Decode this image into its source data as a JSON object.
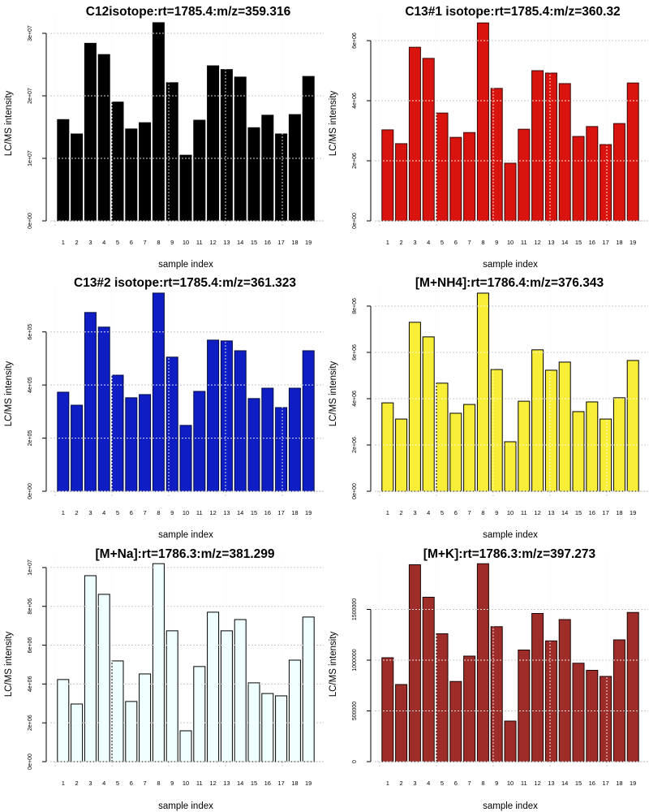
{
  "chart_data": [
    {
      "type": "bar",
      "title": "C12isotope:rt=1785.4:m/z=359.316",
      "xlabel": "sample index",
      "ylabel": "LC/MS intensity",
      "categories": [
        "1",
        "2",
        "3",
        "4",
        "5",
        "6",
        "7",
        "8",
        "9",
        "10",
        "11",
        "12",
        "13",
        "14",
        "15",
        "16",
        "17",
        "18",
        "19"
      ],
      "values": [
        16200000,
        13900000,
        28400000,
        26600000,
        19000000,
        14700000,
        15700000,
        31700000,
        22100000,
        10500000,
        16100000,
        24800000,
        24200000,
        23000000,
        14900000,
        16900000,
        13900000,
        17000000,
        23100000
      ],
      "yticks": [
        0,
        10000000,
        20000000,
        30000000
      ],
      "ytick_labels": [
        "0e+00",
        "1e+07",
        "2e+07",
        "3e+07"
      ],
      "ylim": [
        0,
        31950000
      ],
      "grid": true,
      "fill": "#000000",
      "border": "#000000"
    },
    {
      "type": "bar",
      "title": "C13#1 isotope:rt=1785.4:m/z=360.32",
      "xlabel": "sample index",
      "ylabel": "LC/MS intensity",
      "categories": [
        "1",
        "2",
        "3",
        "4",
        "5",
        "6",
        "7",
        "8",
        "9",
        "10",
        "11",
        "12",
        "13",
        "14",
        "15",
        "16",
        "17",
        "18",
        "19"
      ],
      "values": [
        3030000,
        2570000,
        5780000,
        5410000,
        3590000,
        2780000,
        2940000,
        6590000,
        4410000,
        1920000,
        3050000,
        5000000,
        4920000,
        4570000,
        2810000,
        3140000,
        2540000,
        3240000,
        4590000
      ],
      "yticks": [
        0,
        2000000,
        4000000,
        6000000
      ],
      "ytick_labels": [
        "0e+00",
        "2e+06",
        "4e+06",
        "6e+06"
      ],
      "ylim": [
        0,
        6650000
      ],
      "grid": true,
      "fill": "#d9140f",
      "border": "#3a0606"
    },
    {
      "type": "bar",
      "title": "C13#2 isotope:rt=1785.4:m/z=361.323",
      "xlabel": "sample index",
      "ylabel": "LC/MS intensity",
      "categories": [
        "1",
        "2",
        "3",
        "4",
        "5",
        "6",
        "7",
        "8",
        "9",
        "10",
        "11",
        "12",
        "13",
        "14",
        "15",
        "16",
        "17",
        "18",
        "19"
      ],
      "values": [
        373000,
        324000,
        673000,
        618000,
        437000,
        352000,
        364000,
        746000,
        505000,
        248000,
        376000,
        569000,
        566000,
        529000,
        349000,
        388000,
        315000,
        388000,
        529000
      ],
      "yticks": [
        0,
        200000,
        400000,
        600000
      ],
      "ytick_labels": [
        "0e+00",
        "2e+05",
        "4e+05",
        "6e+05"
      ],
      "ylim": [
        0,
        752000
      ],
      "grid": true,
      "fill": "#0f1ec4",
      "border": "#020a40"
    },
    {
      "type": "bar",
      "title": "[M+NH4]:rt=1786.4:m/z=376.343",
      "xlabel": "sample index",
      "ylabel": "LC/MS intensity",
      "categories": [
        "1",
        "2",
        "3",
        "4",
        "5",
        "6",
        "7",
        "8",
        "9",
        "10",
        "11",
        "12",
        "13",
        "14",
        "15",
        "16",
        "17",
        "18",
        "19"
      ],
      "values": [
        3820000,
        3120000,
        7300000,
        6670000,
        4670000,
        3370000,
        3750000,
        8560000,
        5260000,
        2140000,
        3890000,
        6110000,
        5230000,
        5580000,
        3440000,
        3860000,
        3120000,
        4040000,
        5650000
      ],
      "yticks": [
        0,
        2000000,
        4000000,
        6000000,
        8000000
      ],
      "ytick_labels": [
        "0e+00",
        "2e+06",
        "4e+06",
        "6e+06",
        "8e+06"
      ],
      "ylim": [
        0,
        8630000
      ],
      "grid": true,
      "fill": "#f8ee38",
      "border": "#000000"
    },
    {
      "type": "bar",
      "title": "[M+Na]:rt=1786.3:m/z=381.299",
      "xlabel": "sample index",
      "ylabel": "LC/MS intensity",
      "categories": [
        "1",
        "2",
        "3",
        "4",
        "5",
        "6",
        "7",
        "8",
        "9",
        "10",
        "11",
        "12",
        "13",
        "14",
        "15",
        "16",
        "17",
        "18",
        "19"
      ],
      "values": [
        4230000,
        2970000,
        9580000,
        8620000,
        5190000,
        3100000,
        4520000,
        10200000,
        6740000,
        1590000,
        4900000,
        7700000,
        6740000,
        7320000,
        4060000,
        3510000,
        3390000,
        5230000,
        7450000
      ],
      "yticks": [
        0,
        2000000,
        4000000,
        6000000,
        8000000,
        10000000
      ],
      "ytick_labels": [
        "0e+00",
        "2e+06",
        "4e+06",
        "6e+06",
        "8e+06",
        "1e+07"
      ],
      "ylim": [
        0,
        10290000
      ],
      "grid": true,
      "fill": "#efffff",
      "border": "#000000"
    },
    {
      "type": "bar",
      "title": "[M+K]:rt=1786.3:m/z=397.273",
      "xlabel": "sample index",
      "ylabel": "LC/MS intensity",
      "categories": [
        "1",
        "2",
        "3",
        "4",
        "5",
        "6",
        "7",
        "8",
        "9",
        "10",
        "11",
        "12",
        "13",
        "14",
        "15",
        "16",
        "17",
        "18",
        "19"
      ],
      "values": [
        1024000,
        760000,
        1940000,
        1620000,
        1260000,
        790000,
        1040000,
        1950000,
        1330000,
        400000,
        1100000,
        1460000,
        1190000,
        1400000,
        970000,
        900000,
        840000,
        1200000,
        1470000
      ],
      "yticks": [
        0,
        500000,
        1000000,
        1500000
      ],
      "ytick_labels": [
        "0",
        "500000",
        "1000000",
        "1500000"
      ],
      "ylim": [
        0,
        1968000
      ],
      "grid": true,
      "fill": "#9e2c28",
      "border": "#1a0504"
    }
  ]
}
